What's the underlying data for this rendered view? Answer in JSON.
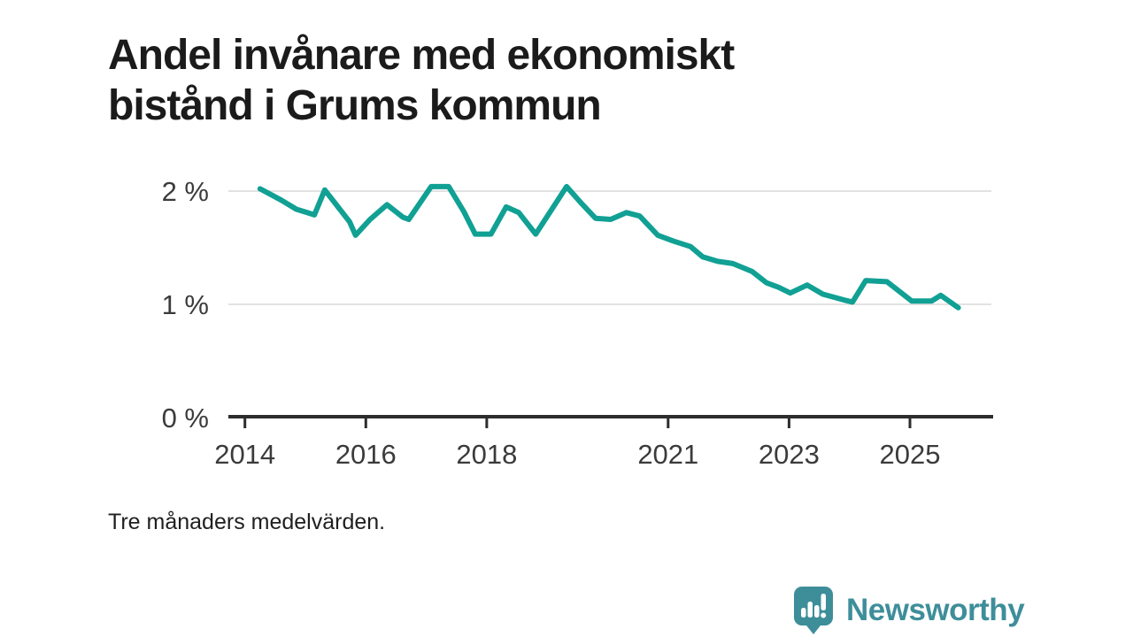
{
  "title": "Andel invånare med ekonomiskt bistånd i Grums kommun",
  "note": "Tre månaders medelvärden.",
  "branding": {
    "name": "Newsworthy",
    "icon": "newsworthy-bubble-chart-icon",
    "brand_color": "#3e8e9a"
  },
  "chart_data": {
    "type": "line",
    "title": "Andel invånare med ekonomiskt bistånd i Grums kommun",
    "subtitle": "Tre månaders medelvärden.",
    "xlabel": "",
    "ylabel": "",
    "xlim": [
      2013.73,
      2026.37
    ],
    "ylim": [
      0,
      2.35
    ],
    "grid": "horizontal",
    "legend_position": "none",
    "x_ticks": [
      "2014",
      "2016",
      "2018",
      "2021",
      "2023",
      "2025"
    ],
    "x_tick_values": [
      2014,
      2016,
      2018,
      2021,
      2023,
      2025
    ],
    "y_ticks": [
      {
        "value": 0,
        "label": "0 %"
      },
      {
        "value": 1,
        "label": "1 %"
      },
      {
        "value": 2,
        "label": "2 %"
      }
    ],
    "line_color": "#11a094",
    "gridline_color": "#e2e2e2",
    "axis_color": "#2d2d2d",
    "tick_label_color": "#3b3b3b",
    "series": [
      {
        "name": "Andel invånare med ekonomiskt bistånd",
        "unit": "%",
        "x": [
          2014.25,
          2014.6,
          2014.85,
          2015.03,
          2015.15,
          2015.32,
          2015.73,
          2015.83,
          2016.07,
          2016.35,
          2016.61,
          2016.71,
          2017.08,
          2017.37,
          2017.62,
          2017.81,
          2018.07,
          2018.32,
          2018.53,
          2018.81,
          2019.32,
          2019.57,
          2019.8,
          2020.05,
          2020.31,
          2020.53,
          2020.83,
          2021.08,
          2021.37,
          2021.57,
          2021.82,
          2022.07,
          2022.39,
          2022.63,
          2022.83,
          2023.02,
          2023.3,
          2023.56,
          2023.9,
          2024.05,
          2024.27,
          2024.62,
          2025.03,
          2025.36,
          2025.51,
          2025.8
        ],
        "y": [
          2.02,
          1.92,
          1.84,
          1.81,
          1.79,
          2.01,
          1.73,
          1.61,
          1.75,
          1.88,
          1.77,
          1.75,
          2.04,
          2.04,
          1.82,
          1.62,
          1.62,
          1.86,
          1.81,
          1.62,
          2.04,
          1.89,
          1.76,
          1.75,
          1.81,
          1.78,
          1.61,
          1.56,
          1.51,
          1.42,
          1.38,
          1.36,
          1.29,
          1.19,
          1.15,
          1.1,
          1.17,
          1.09,
          1.04,
          1.02,
          1.21,
          1.2,
          1.03,
          1.03,
          1.08,
          0.97
        ]
      }
    ]
  }
}
